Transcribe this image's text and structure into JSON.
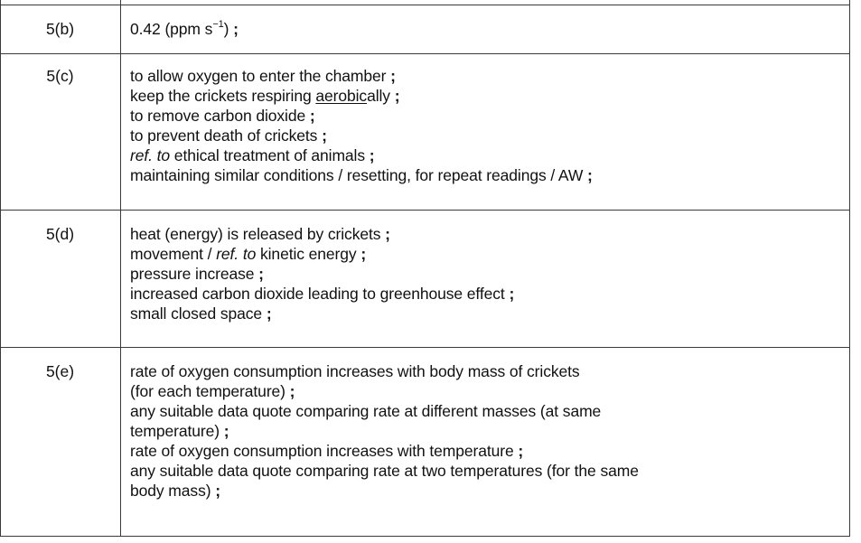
{
  "rows": [
    {
      "question": "5(b)",
      "answer": {
        "value": "0.42",
        "unit_prefix": "(ppm s",
        "unit_exp": "−1",
        "unit_suffix": ")",
        "mark": ";"
      }
    },
    {
      "question": "5(c)",
      "lines": [
        {
          "text": "to allow oxygen to enter the chamber",
          "mark": ";"
        },
        {
          "pre": "keep the crickets respiring ",
          "underlined": "aerobic",
          "post": "ally",
          "mark": ";"
        },
        {
          "text": "to remove carbon dioxide",
          "mark": ";"
        },
        {
          "text": "to prevent death of crickets",
          "mark": ";"
        },
        {
          "italic": "ref. to",
          "post": " ethical treatment of animals",
          "mark": ";"
        },
        {
          "text": "maintaining similar conditions / resetting, for repeat readings / AW",
          "mark": ";"
        }
      ]
    },
    {
      "question": "5(d)",
      "lines": [
        {
          "text": "heat (energy) is released by crickets",
          "mark": ";"
        },
        {
          "pre": "movement / ",
          "italic": "ref. to",
          "post": " kinetic energy",
          "mark": ";"
        },
        {
          "text": "pressure increase",
          "mark": ";"
        },
        {
          "text": "increased carbon dioxide leading to greenhouse effect",
          "mark": ";"
        },
        {
          "text": "small closed space",
          "mark": ";"
        }
      ]
    },
    {
      "question": "5(e)",
      "lines": [
        {
          "text": "rate of oxygen consumption increases with body mass of crickets"
        },
        {
          "text": "(for each temperature)",
          "mark": ";"
        },
        {
          "text": "any suitable data quote comparing rate at different masses (at same"
        },
        {
          "text": "temperature)",
          "mark": ";"
        },
        {
          "text": "rate of oxygen consumption increases with temperature",
          "mark": ";"
        },
        {
          "text": "any suitable data quote comparing rate at two temperatures (for the same"
        },
        {
          "text": "body mass)",
          "mark": ";"
        }
      ]
    }
  ]
}
